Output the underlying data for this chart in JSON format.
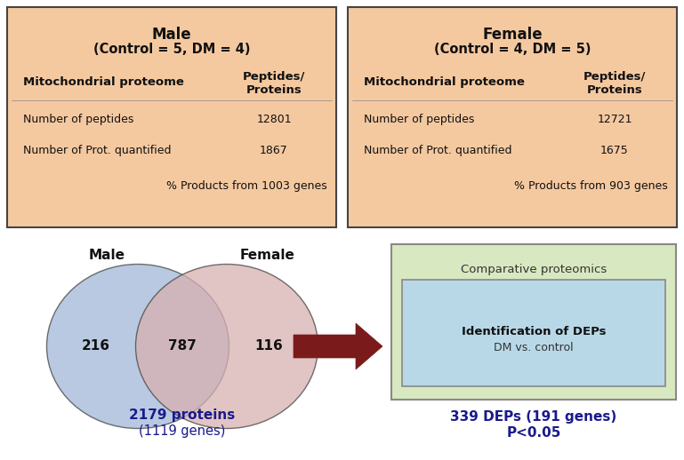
{
  "bg_color": "#ffffff",
  "male_box": {
    "bg_color": "#f5c9a0",
    "border_color": "#444444",
    "title": "Male",
    "subtitle": "(Control = 5, DM = 4)",
    "col1_header": "Mitochondrial proteome",
    "col2_header": "Peptides/\nProteins",
    "rows": [
      {
        "label": "Number of peptides",
        "value": "12801"
      },
      {
        "label": "Number of Prot. quantified",
        "value": "1867"
      }
    ],
    "footer": "% Products from 1003 genes"
  },
  "female_box": {
    "bg_color": "#f5c9a0",
    "border_color": "#444444",
    "title": "Female",
    "subtitle": "(Control = 4, DM = 5)",
    "col1_header": "Mitochondrial proteome",
    "col2_header": "Peptides/\nProteins",
    "rows": [
      {
        "label": "Number of peptides",
        "value": "12721"
      },
      {
        "label": "Number of Prot. quantified",
        "value": "1675"
      }
    ],
    "footer": "% Products from 903 genes"
  },
  "venn": {
    "male_color": "#a0b8d8",
    "female_color": "#d8b0b0",
    "male_alpha": 0.75,
    "female_alpha": 0.75,
    "male_label": "Male",
    "female_label": "Female",
    "left_value": "216",
    "center_value": "787",
    "right_value": "116",
    "bottom_text1": "2179 proteins",
    "bottom_text2": "(1119 genes)",
    "bottom_color": "#1a1a8c"
  },
  "arrow_color": "#7b1a1a",
  "comp_box": {
    "outer_bg": "#d8e8c0",
    "outer_border": "#888888",
    "inner_bg": "#b8d8e8",
    "inner_border": "#888888",
    "outer_title": "Comparative proteomics",
    "inner_line1": "Identification of DEPs",
    "inner_line2": "DM vs. control"
  },
  "result_text1": "339 DEPs (191 genes)",
  "result_text2": "P<0.05",
  "result_color": "#1a1a8c"
}
